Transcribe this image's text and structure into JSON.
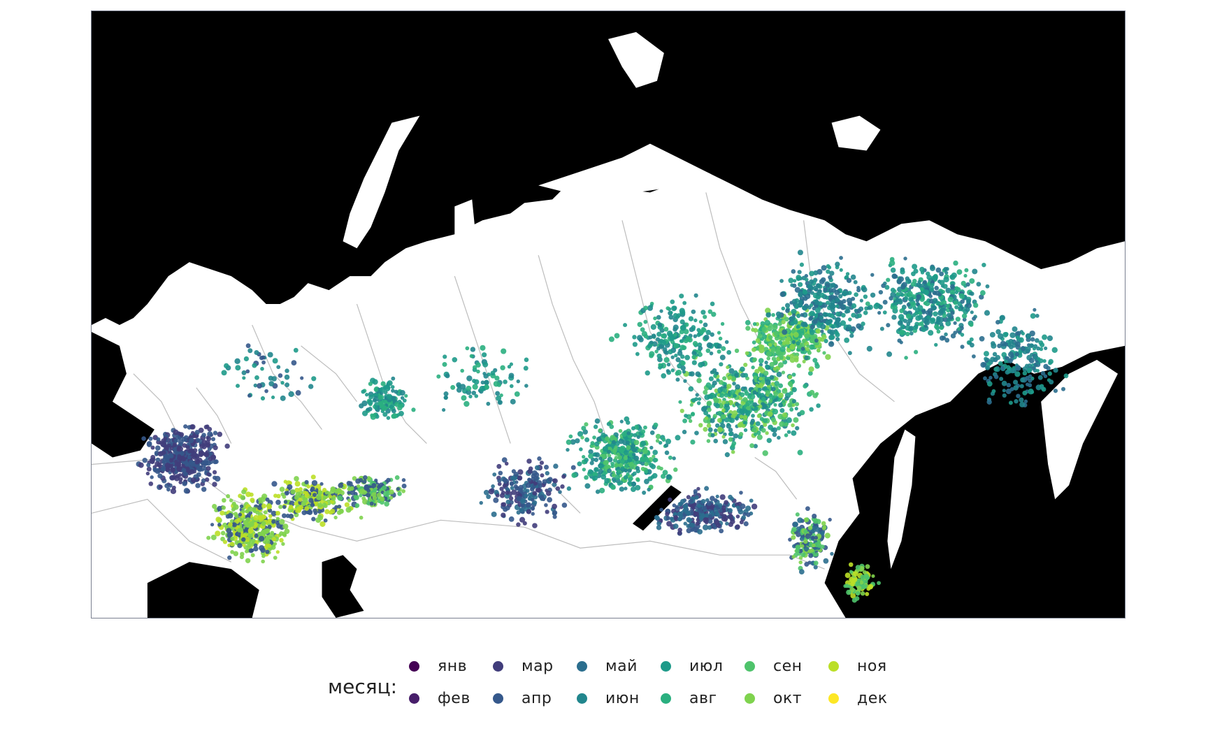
{
  "legend": {
    "title": "месяц:",
    "months": [
      {
        "label": "янв",
        "color": "#440154"
      },
      {
        "label": "фев",
        "color": "#471e6a"
      },
      {
        "label": "мар",
        "color": "#413d7b"
      },
      {
        "label": "апр",
        "color": "#35588b"
      },
      {
        "label": "май",
        "color": "#2b6e8e"
      },
      {
        "label": "июн",
        "color": "#21868d"
      },
      {
        "label": "июл",
        "color": "#1e9a89"
      },
      {
        "label": "авг",
        "color": "#2aaf7f"
      },
      {
        "label": "сен",
        "color": "#4ec36b"
      },
      {
        "label": "окт",
        "color": "#7fd34e"
      },
      {
        "label": "ноя",
        "color": "#bbdf27"
      },
      {
        "label": "дек",
        "color": "#fde725"
      }
    ]
  },
  "colors": {
    "sea": "#000000",
    "land": "#ffffff",
    "border": "#bbbbbb",
    "frame": "#7a8090"
  }
}
